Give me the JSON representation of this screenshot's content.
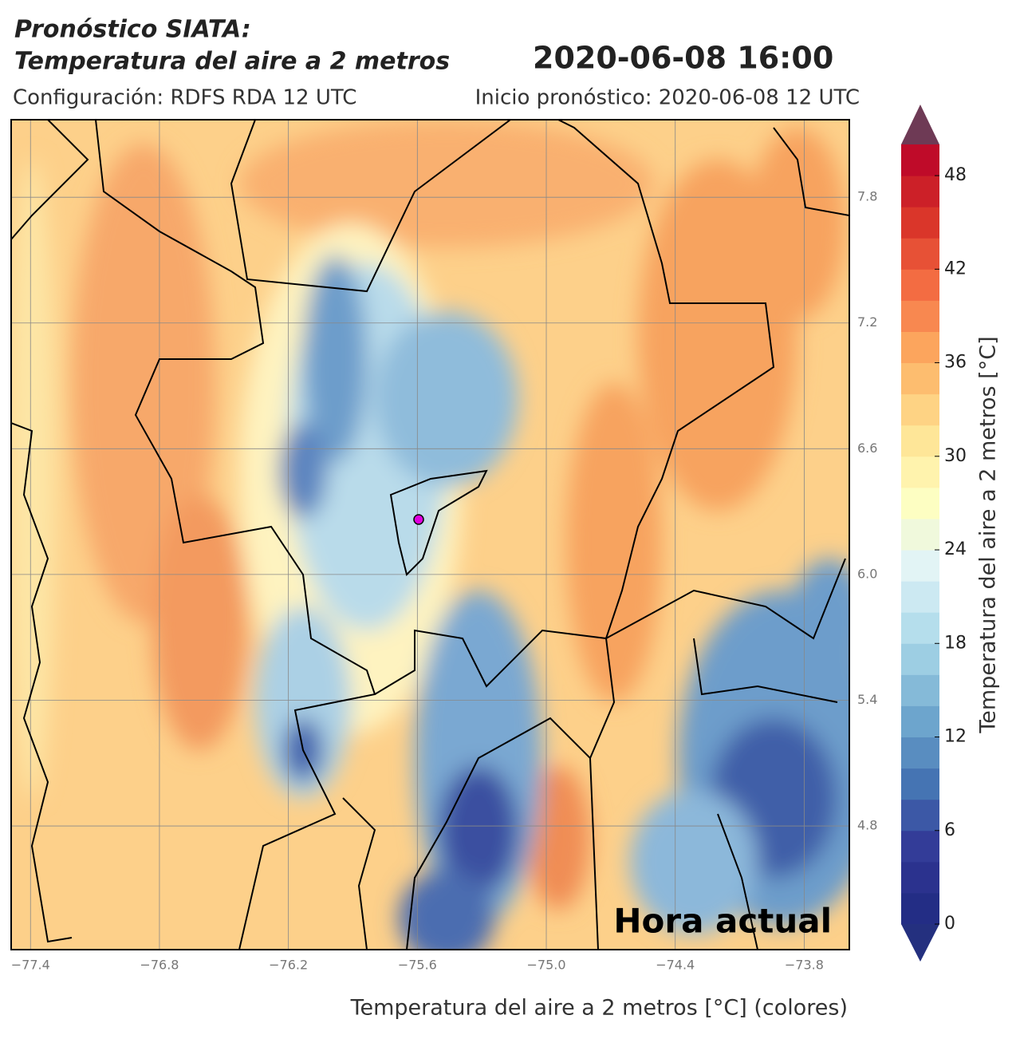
{
  "header": {
    "title": [
      "Pronóstico SIATA:",
      "Temperatura del aire a 2 metros"
    ],
    "datetime": "2020-06-08 16:00",
    "configuration": "Configuración: RDFS RDA 12 UTC",
    "forecast_start": "Inicio pronóstico: 2020-06-08 12 UTC"
  },
  "map": {
    "xlim": [
      -77.49,
      -73.59
    ],
    "ylim": [
      4.21,
      8.17
    ],
    "xticks": [
      {
        "value": -77.4,
        "label": "−77.4"
      },
      {
        "value": -76.8,
        "label": "−76.8"
      },
      {
        "value": -76.2,
        "label": "−76.2"
      },
      {
        "value": -75.6,
        "label": "−75.6"
      },
      {
        "value": -75.0,
        "label": "−75.0"
      },
      {
        "value": -74.4,
        "label": "−74.4"
      },
      {
        "value": -73.8,
        "label": "−73.8"
      }
    ],
    "yticks": [
      4.8,
      5.4,
      {
        "value": 6,
        "label": "6.0"
      },
      6.6,
      7.2,
      7.8
    ],
    "grid": true,
    "xlabel": "Temperatura del aire a 2 metros [°C] (colores)",
    "annotation": "Hora actual"
  },
  "colorbar": {
    "label": "Temperatura del aire a 2 metros [°C]",
    "lim": [
      0,
      50
    ],
    "ticks": [
      0,
      6,
      12,
      18,
      24,
      30,
      36,
      42,
      48
    ],
    "colors": [
      "#1f2a80",
      "#313695",
      "#4575b4",
      "#74add1",
      "#abd9e9",
      "#e0f3f8",
      "#ffffbf",
      "#fee090",
      "#fdae61",
      "#f46d43",
      "#d73027",
      "#b8002a"
    ],
    "extend_colors": [
      "#24307f",
      "#6e3a55"
    ]
  }
}
